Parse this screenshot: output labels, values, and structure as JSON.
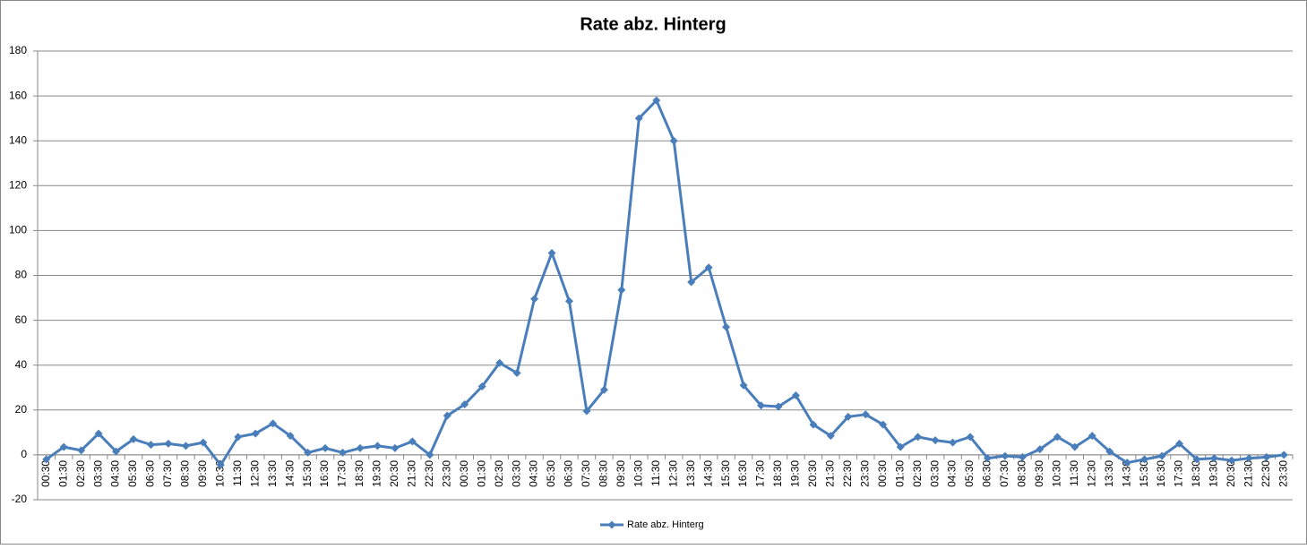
{
  "chart_data": {
    "type": "line",
    "title": "Rate abz. Hinterg",
    "categories": [
      "00:30",
      "01:30",
      "02:30",
      "03:30",
      "04:30",
      "05:30",
      "06:30",
      "07:30",
      "08:30",
      "09:30",
      "10:30",
      "11:30",
      "12:30",
      "13:30",
      "14:30",
      "15:30",
      "16:30",
      "17:30",
      "18:30",
      "19:30",
      "20:30",
      "21:30",
      "22:30",
      "23:30",
      "00:30",
      "01:30",
      "02:30",
      "03:30",
      "04:30",
      "05:30",
      "06:30",
      "07:30",
      "08:30",
      "09:30",
      "10:30",
      "11:30",
      "12:30",
      "13:30",
      "14:30",
      "15:30",
      "16:30",
      "17:30",
      "18:30",
      "19:30",
      "20:30",
      "21:30",
      "22:30",
      "23:30",
      "00:30",
      "01:30",
      "02:30",
      "03:30",
      "04:30",
      "05:30",
      "06:30",
      "07:30",
      "08:30",
      "09:30",
      "10:30",
      "11:30",
      "12:30",
      "13:30",
      "14:30",
      "15:30",
      "16:30",
      "17:30",
      "18:30",
      "19:30",
      "20:30",
      "21:30",
      "22:30",
      "23:30"
    ],
    "series": [
      {
        "name": "Rate abz. Hinterg",
        "color": "#4a7ebb",
        "values": [
          -2,
          3.5,
          2,
          9.5,
          1.5,
          7,
          4.5,
          5,
          4,
          5.5,
          -4.5,
          8,
          9.5,
          14,
          8.5,
          1,
          3,
          1,
          3,
          4,
          3,
          6,
          0,
          17.5,
          22.5,
          30.5,
          41,
          36.5,
          69.5,
          90,
          68.5,
          19.5,
          29,
          73.5,
          150,
          158,
          140,
          77,
          83.5,
          57,
          31,
          22,
          21.5,
          26.5,
          13.5,
          8.5,
          17,
          18,
          13.5,
          3.5,
          8,
          6.5,
          5.5,
          8,
          -1.5,
          -0.5,
          -1,
          2.5,
          8,
          3.5,
          8.5,
          1.5,
          -3.5,
          -2,
          -0.5,
          5,
          -2,
          -1.5,
          -2.5,
          -1.5,
          -1,
          0
        ]
      }
    ],
    "ylim": [
      -20,
      180
    ],
    "yticks": [
      -20,
      0,
      20,
      40,
      60,
      80,
      100,
      120,
      140,
      160,
      180
    ],
    "grid": true,
    "legend": "bottom"
  }
}
